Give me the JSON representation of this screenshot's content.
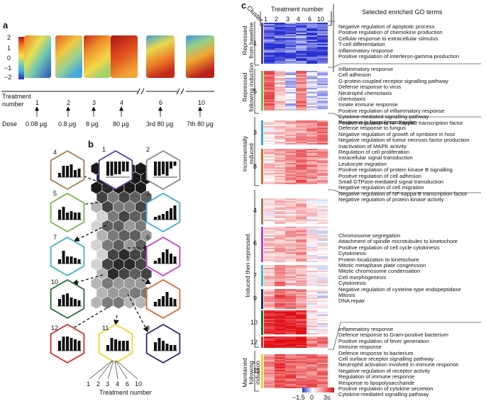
{
  "panel_a": {
    "letter": "a",
    "colorbar": {
      "ticks": [
        "2",
        "1",
        "0",
        "−1",
        "−2"
      ]
    },
    "treatment_title": "Treatment\nnumber",
    "treatments": [
      "1",
      "2",
      "3",
      "4",
      "6",
      "10"
    ],
    "dose_label": "Dose",
    "doses": [
      "0.08 μg",
      "0.8 μg",
      "8 μg",
      "80 μg",
      "3rd 80 μg",
      "7th 80 μg"
    ]
  },
  "panel_b": {
    "letter": "b",
    "hex_labels": [
      "1",
      "2",
      "3",
      "4",
      "5",
      "6",
      "7",
      "8",
      "9",
      "10",
      "11",
      "12"
    ],
    "x_ticks": [
      "1",
      "2",
      "3",
      "4",
      "6",
      "10"
    ],
    "x_title": "Treatment number"
  },
  "panel_c": {
    "letter": "c",
    "cluster_label": "Cluster",
    "treatment_title": "Treatment number",
    "treatment_cols": [
      "1",
      "2",
      "3",
      "4",
      "6",
      "10"
    ],
    "go_title": "Selected enriched GO terms",
    "groups": [
      {
        "label": "Repressed\nfrom baseline"
      },
      {
        "label": "Repressed\nfollowing induction"
      },
      {
        "label": "Incrementally\ninduced"
      },
      {
        "label": "Induced then repressed"
      },
      {
        "label": "Maintained\nfollowing induction"
      }
    ],
    "clusters": [
      "1",
      "5",
      "3",
      "8",
      "4",
      "6",
      "7",
      "9",
      "10",
      "12",
      "11"
    ],
    "go_blocks": [
      [
        "Negative regulation of apoptotic process",
        "Positive regulation of chemokine production",
        "Cellular response to extracellular stimulus",
        "T-cell differentiation",
        "Inflammatory response",
        "Positive regulation of interferon-gamma production"
      ],
      [
        "Inflammatory response",
        "Cell adhesion",
        "G-protein-coupled receptor signalling pathway",
        "Defense response to virus",
        "Neutrophil chemotaxis",
        "chemotaxis",
        "Innate immune response",
        "Positive regulation of inflammatory response",
        "Cytokine-mediated signalling pathway",
        "Positive regulation of NF-kappaB transcription factor"
      ],
      [
        "Response to lipopolysaccharide",
        "Defense response to fungus",
        "Negative regulation of growth of symbiont in host",
        "Negative regulation of tumor necrosis factor production",
        "Inactivation of MAPK activity",
        "Regulation of cell proliferation",
        "Intracellular signal transduction",
        "Leukocyte migration",
        "Positive regulation of protein kinase B signalling",
        "Positive regulation of cell adhesion",
        "Small GTPase-mediated signal transduction",
        "Negative regulation of cell migration",
        "Negative regulation of NF-kappa-B transcription factor",
        "Negative regulation of protein kinase activity"
      ],
      [
        "Chromosome segregation",
        "Attachment of spindle microtubules to kinetochore",
        "Positive regulation of cell cycle cytokinesis",
        "Cytokinesis",
        "Protein localization to kinetochore",
        "Mitotic metaphase plate congression",
        "Mitotic chromosome condensation",
        "Cell morphogenesis",
        "Cytokinesis",
        "Negative regulation of cysteine-type endopeptidase",
        "Mitosis",
        "DNA repair"
      ],
      [
        "Inflammatory response",
        "Defence response to Gram-positive bacterium",
        "Positive regulation of fever generation",
        "Immune response",
        "Defence response to bacterium",
        "Cell surface receptor signalling pathway",
        "Neutrophil activation involved in immune response",
        "Negative regulation of receptor activity",
        "Regulation of immune response",
        "Response to lipopolysaccharide",
        "Positive regulation of cytokine secretion",
        "Cytokine-mediated signalling pathway"
      ]
    ],
    "legend_ticks": [
      "−1.5",
      "0",
      "3≤"
    ]
  }
}
